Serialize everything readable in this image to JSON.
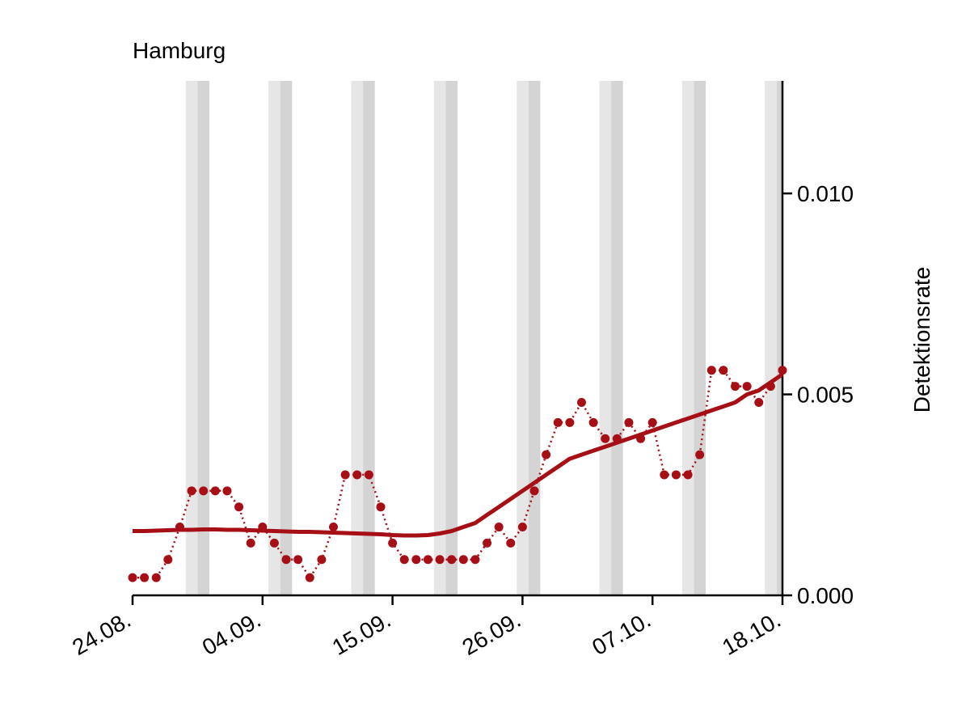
{
  "chart_data": {
    "type": "line",
    "title": "Hamburg",
    "y_label": "Detektionsrate",
    "categories": [
      "24.08.",
      null,
      null,
      null,
      null,
      null,
      null,
      null,
      null,
      null,
      null,
      "04.09.",
      null,
      null,
      null,
      null,
      null,
      null,
      null,
      null,
      null,
      null,
      "15.09.",
      null,
      null,
      null,
      null,
      null,
      null,
      null,
      null,
      null,
      null,
      "26.09.",
      null,
      null,
      null,
      null,
      null,
      null,
      null,
      null,
      null,
      null,
      "07.10.",
      null,
      null,
      null,
      null,
      null,
      null,
      null,
      null,
      null,
      null,
      "18.10."
    ],
    "series": [
      {
        "color": "#a50f15",
        "style": "dotted",
        "values": [
          0.00044,
          0.00044,
          0.00044,
          0.00089,
          0.0017,
          0.0026,
          0.0026,
          0.0026,
          0.0026,
          0.0022,
          0.0013,
          0.0017,
          0.0013,
          0.00089,
          0.00089,
          0.00044,
          0.00089,
          0.0017,
          0.003,
          0.003,
          0.003,
          0.0022,
          0.0013,
          0.00089,
          0.00089,
          0.00089,
          0.00089,
          0.00089,
          0.00089,
          0.00089,
          0.0013,
          0.0017,
          0.0013,
          0.0017,
          0.0026,
          0.0035,
          0.0043,
          0.0043,
          0.0048,
          0.0043,
          0.0039,
          0.0039,
          0.0043,
          0.0039,
          0.0043,
          0.003,
          0.003,
          0.003,
          0.0035,
          0.0056,
          0.0056,
          0.0052,
          0.0052,
          0.0048,
          0.0052,
          0.0056
        ]
      },
      {
        "color": "#a50f15",
        "style": "solid",
        "values": [
          0.0016,
          0.0016,
          0.00161,
          0.00162,
          0.00163,
          0.00163,
          0.00164,
          0.00164,
          0.00163,
          0.00163,
          0.00162,
          0.00161,
          0.0016,
          0.00159,
          0.00158,
          0.00158,
          0.00157,
          0.00156,
          0.00155,
          0.00154,
          0.00153,
          0.00152,
          0.0015,
          0.00149,
          0.00149,
          0.0015,
          0.00154,
          0.0016,
          0.0017,
          0.0018,
          0.002,
          0.0022,
          0.0024,
          0.0026,
          0.0028,
          0.003,
          0.0032,
          0.0034,
          0.0035,
          0.0036,
          0.0037,
          0.0038,
          0.0039,
          0.004,
          0.0041,
          0.0042,
          0.0043,
          0.0044,
          0.0045,
          0.0046,
          0.0047,
          0.0048,
          0.005,
          0.0051,
          0.0053,
          0.0055
        ]
      }
    ],
    "ylim": [
      0,
      0.0128
    ],
    "yticks": [
      {
        "value": 0,
        "label": "0.000"
      },
      {
        "value": 0.005,
        "label": "0.005"
      },
      {
        "value": 0.01,
        "label": "0.010"
      }
    ],
    "y_axis_side": "right",
    "grid": false
  }
}
